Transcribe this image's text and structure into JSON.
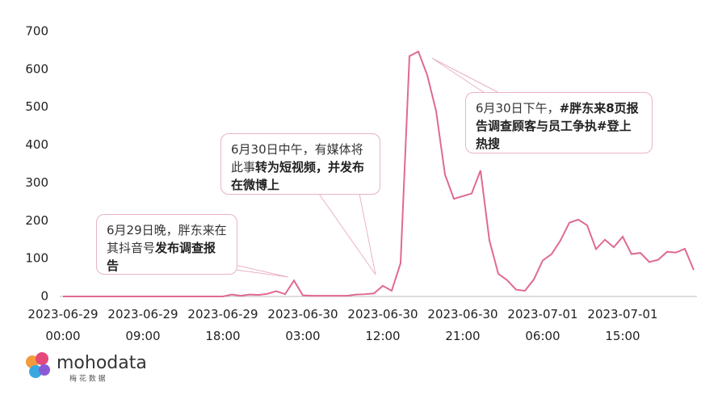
{
  "chart_data": {
    "type": "line",
    "categories": [
      "2023-06-29 00:00",
      null,
      null,
      null,
      null,
      null,
      null,
      null,
      null,
      "2023-06-29 09:00",
      null,
      null,
      null,
      null,
      null,
      null,
      null,
      null,
      "2023-06-29 18:00",
      null,
      null,
      null,
      null,
      null,
      null,
      null,
      null,
      "2023-06-30 03:00",
      null,
      null,
      null,
      null,
      null,
      null,
      null,
      null,
      "2023-06-30 12:00",
      null,
      null,
      null,
      null,
      null,
      null,
      null,
      null,
      "2023-06-30 21:00",
      null,
      null,
      null,
      null,
      null,
      null,
      null,
      null,
      "2023-07-01 06:00",
      null,
      null,
      null,
      null,
      null,
      null,
      null,
      null,
      "2023-07-01 15:00",
      null,
      null,
      null,
      null,
      null,
      null,
      null,
      null
    ],
    "values": [
      0,
      0,
      0,
      0,
      0,
      0,
      0,
      0,
      0,
      0,
      0,
      0,
      0,
      0,
      0,
      0,
      0,
      0,
      0,
      5,
      2,
      5,
      4,
      7,
      14,
      6,
      42,
      3,
      2,
      2,
      2,
      2,
      2,
      5,
      6,
      8,
      28,
      15,
      88,
      635,
      647,
      585,
      490,
      322,
      258,
      265,
      272,
      333,
      148,
      60,
      43,
      18,
      15,
      45,
      95,
      112,
      148,
      195,
      203,
      188,
      125,
      150,
      130,
      158,
      112,
      115,
      91,
      97,
      118,
      116,
      126,
      70
    ],
    "color": "#e06a8f",
    "ylim": [
      0,
      700
    ],
    "yticks": [
      0,
      100,
      200,
      300,
      400,
      500,
      600,
      700
    ],
    "grid": false,
    "annotations": [
      {
        "text": "6月29日晚，胖东来在其抖音号",
        "bold": "发布调查报告"
      },
      {
        "text": "6月30日中午，有媒体将此事",
        "bold": "转为短视频，并发布在微博上"
      },
      {
        "text": "6月30日下午，",
        "bold": "#胖东来8页报告调查顾客与员工争执#登上热搜"
      }
    ]
  },
  "brand": {
    "name": "mohodata",
    "sub": "梅 花 数 据"
  }
}
